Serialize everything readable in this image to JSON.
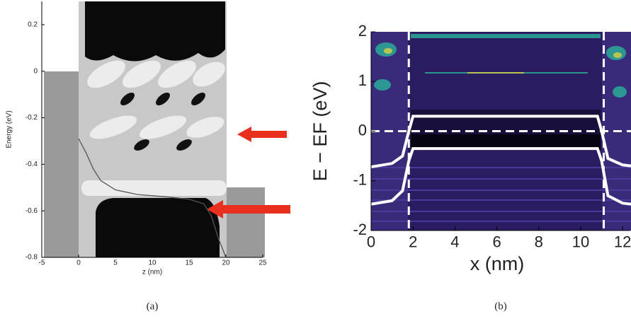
{
  "chart_data": [
    {
      "type": "line",
      "caption": "(a)",
      "xlabel": "z (nm)",
      "ylabel": "Energy (eV)",
      "xlim": [
        -5,
        25
      ],
      "xticks": [
        -5,
        0,
        5,
        10,
        15,
        20,
        25
      ],
      "ylim": [
        -0.8,
        0.3
      ],
      "yticks": [
        -0.8,
        -0.6,
        -0.4,
        -0.2,
        0,
        0.2
      ],
      "series": [
        {
          "color": "#555555",
          "x": [
            0,
            1,
            2,
            3,
            5,
            8,
            12,
            15,
            17,
            18,
            19,
            20
          ],
          "values": [
            -0.29,
            -0.35,
            -0.42,
            -0.47,
            -0.51,
            -0.53,
            -0.54,
            -0.55,
            -0.57,
            -0.62,
            -0.72,
            -0.8
          ]
        }
      ]
    },
    {
      "type": "line",
      "caption": "(b)",
      "xlabel": "x (nm)",
      "ylabel": "E − EF (eV)",
      "xlim": [
        0,
        12.4
      ],
      "xticks": [
        0,
        2,
        4,
        6,
        8,
        10,
        12
      ],
      "ylim": [
        -2,
        2
      ],
      "yticks": [
        -2,
        -1,
        0,
        1,
        2
      ],
      "vlines": [
        1.8,
        11.1
      ],
      "hlines": [
        0
      ],
      "series": [
        {
          "color": "#ffffff",
          "x": [
            0,
            1,
            1.5,
            1.8,
            2,
            10.8,
            11,
            11.3,
            12,
            12.4
          ],
          "values": [
            -0.72,
            -0.65,
            -0.5,
            0,
            0.3,
            0.3,
            0,
            -0.55,
            -0.68,
            -0.7
          ]
        },
        {
          "color": "#ffffff",
          "x": [
            0,
            1,
            1.5,
            1.8,
            2,
            10.8,
            11,
            11.3,
            12,
            12.4
          ],
          "values": [
            -1.47,
            -1.4,
            -1.2,
            -0.6,
            -0.35,
            -0.35,
            -0.6,
            -1.3,
            -1.45,
            -1.47
          ]
        }
      ]
    }
  ]
}
